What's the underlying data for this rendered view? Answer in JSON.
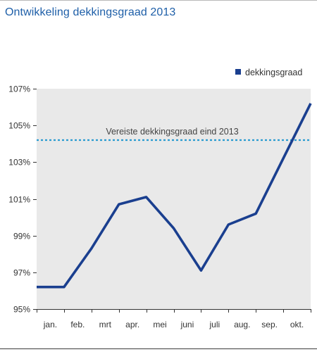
{
  "title": "Ontwikkeling dekkingsgraad 2013",
  "legend": {
    "label": "dekkingsgraad",
    "color": "#1a3f8f"
  },
  "colors": {
    "plot_background": "#e9e9e9",
    "line": "#1a3f8f",
    "reference": "#2a9bd0",
    "axis": "#333333",
    "title": "#1e5fa8"
  },
  "chart_data": {
    "type": "line",
    "title": "Ontwikkeling dekkingsgraad 2013",
    "categories": [
      "jan.",
      "feb.",
      "mrt",
      "apr.",
      "mei",
      "juni",
      "juli",
      "aug.",
      "sep.",
      "okt."
    ],
    "series": [
      {
        "name": "dekkingsgraad",
        "points": [
          {
            "x": 0.0,
            "y": 96.2
          },
          {
            "x": 1.0,
            "y": 96.2
          },
          {
            "x": 2.0,
            "y": 98.3
          },
          {
            "x": 3.0,
            "y": 100.7
          },
          {
            "x": 4.0,
            "y": 101.1
          },
          {
            "x": 5.0,
            "y": 99.4
          },
          {
            "x": 6.0,
            "y": 97.1
          },
          {
            "x": 7.0,
            "y": 99.6
          },
          {
            "x": 8.0,
            "y": 100.2
          },
          {
            "x": 9.0,
            "y": 103.2
          },
          {
            "x": 10.0,
            "y": 106.2
          }
        ]
      }
    ],
    "reference_line": {
      "label": "Vereiste dekkingsgraad eind 2013",
      "y": 104.2
    },
    "ylim": [
      95,
      107
    ],
    "xlim": [
      0,
      10
    ],
    "yticks": [
      95,
      97,
      99,
      101,
      103,
      105,
      107
    ],
    "ytick_labels": [
      "95%",
      "97%",
      "99%",
      "101%",
      "103%",
      "105%",
      "107%"
    ],
    "grid": false,
    "legend_position": "top-right"
  }
}
